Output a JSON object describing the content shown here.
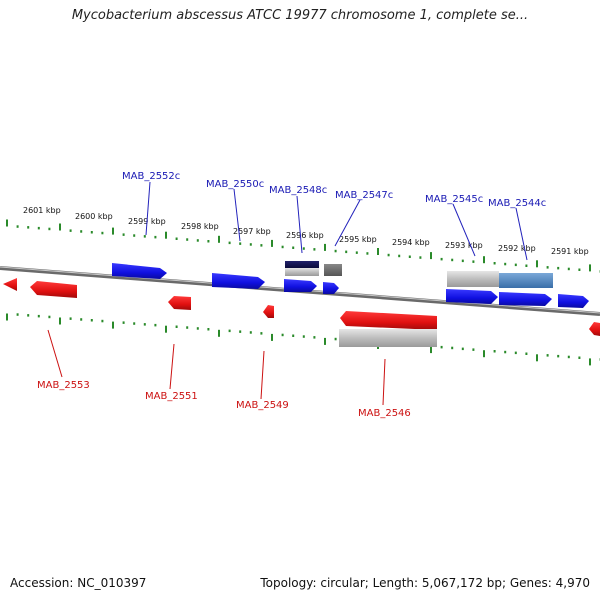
{
  "title": "Mycobacterium abscessus ATCC 19977 chromosome 1, complete se...",
  "accession": "Accession: NC_010397",
  "summary": "Topology: circular; Length: 5,067,172 bp; Genes: 4,970",
  "colors": {
    "forward": "#1010e8",
    "reverse": "#e81010",
    "forward_label": "#1a1ab4",
    "reverse_label": "#cc1111",
    "tick": "#2a8a2a",
    "backbone": "#707070"
  },
  "kbp_labels": [
    "2601 kbp",
    "2600 kbp",
    "2599 kbp",
    "2598 kbp",
    "2597 kbp",
    "2596 kbp",
    "2595 kbp",
    "2594 kbp",
    "2593 kbp",
    "2592 kbp",
    "2591 kbp"
  ],
  "upper_genes": [
    "MAB_2552c",
    "MAB_2550c",
    "MAB_2548c",
    "MAB_2547c",
    "MAB_2545c",
    "MAB_2544c"
  ],
  "lower_genes": [
    "MAB_2553",
    "MAB_2551",
    "MAB_2549",
    "MAB_2546"
  ]
}
